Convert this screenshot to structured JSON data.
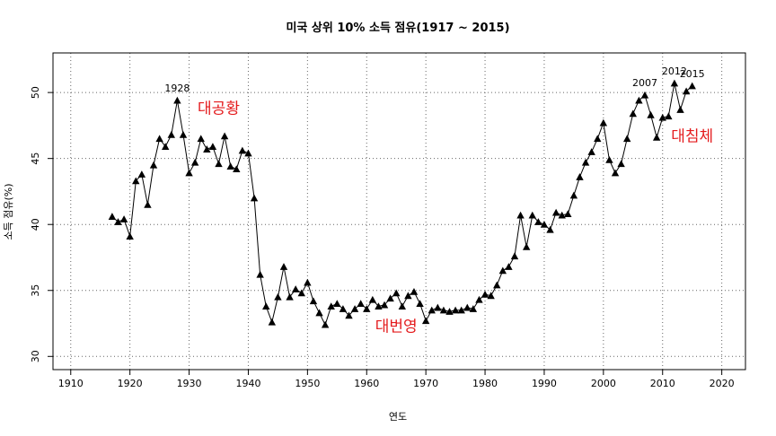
{
  "chart_data": {
    "type": "line",
    "title": "미국 상위 10% 소득 점유(1917 ~ 2015)",
    "xlabel": "연도",
    "ylabel": "소득 점유(%)",
    "xlim": [
      1907,
      2024
    ],
    "ylim": [
      29,
      53
    ],
    "x_ticks": [
      1910,
      1920,
      1930,
      1940,
      1950,
      1960,
      1970,
      1980,
      1990,
      2000,
      2010,
      2020
    ],
    "y_ticks": [
      30,
      35,
      40,
      45,
      50
    ],
    "grid": true,
    "marker": "triangle",
    "line_color": "#000000",
    "x": [
      1917,
      1918,
      1919,
      1920,
      1921,
      1922,
      1923,
      1924,
      1925,
      1926,
      1927,
      1928,
      1929,
      1930,
      1931,
      1932,
      1933,
      1934,
      1935,
      1936,
      1937,
      1938,
      1939,
      1940,
      1941,
      1942,
      1943,
      1944,
      1945,
      1946,
      1947,
      1948,
      1949,
      1950,
      1951,
      1952,
      1953,
      1954,
      1955,
      1956,
      1957,
      1958,
      1959,
      1960,
      1961,
      1962,
      1963,
      1964,
      1965,
      1966,
      1967,
      1968,
      1969,
      1970,
      1971,
      1972,
      1973,
      1974,
      1975,
      1976,
      1977,
      1978,
      1979,
      1980,
      1981,
      1982,
      1983,
      1984,
      1985,
      1986,
      1987,
      1988,
      1989,
      1990,
      1991,
      1992,
      1993,
      1994,
      1995,
      1996,
      1997,
      1998,
      1999,
      2000,
      2001,
      2002,
      2003,
      2004,
      2005,
      2006,
      2007,
      2008,
      2009,
      2010,
      2011,
      2012,
      2013,
      2014,
      2015
    ],
    "y": [
      40.6,
      40.2,
      40.4,
      39.1,
      43.3,
      43.8,
      41.5,
      44.5,
      46.5,
      45.9,
      46.8,
      49.4,
      46.8,
      43.9,
      44.7,
      46.5,
      45.7,
      45.9,
      44.6,
      46.7,
      44.4,
      44.2,
      45.6,
      45.4,
      42.0,
      36.2,
      33.8,
      32.6,
      34.5,
      36.8,
      34.5,
      35.1,
      34.8,
      35.6,
      34.2,
      33.3,
      32.4,
      33.8,
      34.0,
      33.6,
      33.1,
      33.6,
      34.0,
      33.6,
      34.3,
      33.8,
      33.9,
      34.4,
      34.8,
      33.8,
      34.6,
      34.9,
      34.0,
      32.7,
      33.5,
      33.7,
      33.5,
      33.4,
      33.5,
      33.5,
      33.7,
      33.6,
      34.3,
      34.7,
      34.6,
      35.4,
      36.5,
      36.8,
      37.6,
      40.7,
      38.3,
      40.7,
      40.2,
      40.0,
      39.6,
      40.9,
      40.7,
      40.8,
      42.2,
      43.6,
      44.7,
      45.5,
      46.5,
      47.7,
      44.9,
      43.9,
      44.6,
      46.5,
      48.4,
      49.4,
      49.8,
      48.3,
      46.6,
      48.1,
      48.2,
      50.7,
      48.7,
      50.1,
      50.5
    ],
    "point_labels": [
      {
        "x": 1928,
        "y": 49.4,
        "text": "1928"
      },
      {
        "x": 2007,
        "y": 49.8,
        "text": "2007"
      },
      {
        "x": 2012,
        "y": 50.7,
        "text": "2012"
      },
      {
        "x": 2015,
        "y": 50.5,
        "text": "2015"
      }
    ],
    "annotations": [
      {
        "text": "대공황",
        "x": 1935,
        "y": 48.4,
        "color": "#e41a1c"
      },
      {
        "text": "대번영",
        "x": 1965,
        "y": 31.9,
        "color": "#e41a1c"
      },
      {
        "text": "대침체",
        "x": 2015,
        "y": 46.3,
        "color": "#e41a1c"
      }
    ]
  }
}
